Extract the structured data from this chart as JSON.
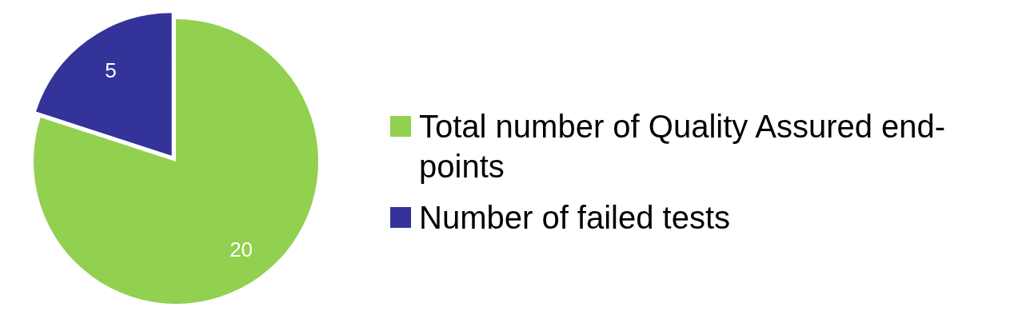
{
  "chart_data": {
    "type": "pie",
    "categories": [
      "Total number of Quality Assured end-points",
      "Number of failed tests"
    ],
    "values": [
      20,
      5
    ],
    "colors": [
      "#92d050",
      "#333399"
    ],
    "data_labels": true,
    "legend": "right"
  }
}
